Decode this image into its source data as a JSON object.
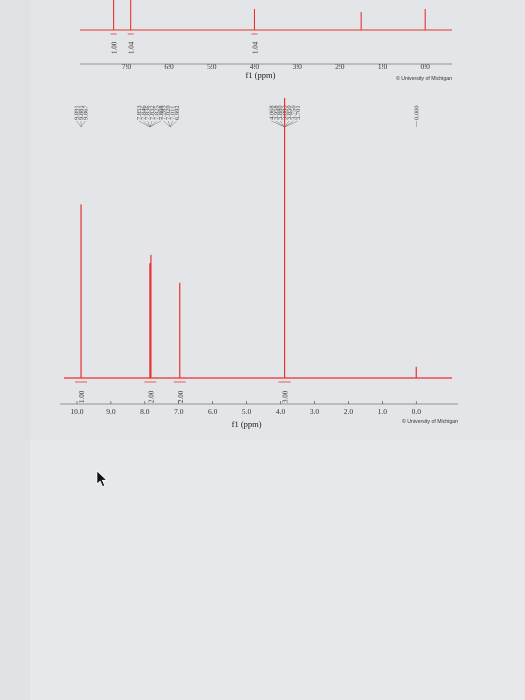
{
  "colors": {
    "spectrum": "#e8322d",
    "paper": "#e6e7e9",
    "text": "#333333"
  },
  "icons": {
    "cursor": "mouse-pointer-icon"
  },
  "chart_data": [
    {
      "type": "line",
      "panel": "top-partial",
      "xlabel": "f1 (ppm)",
      "credit": "© University of Michigan",
      "xlim": [
        7.9,
        -0.3
      ],
      "x_ticks": [
        "7.0",
        "6.0",
        "5.0",
        "4.0",
        "3.0",
        "2.0",
        "1.0",
        "0.0"
      ],
      "peaks": [
        {
          "x": 7.3,
          "height": 0.5
        },
        {
          "x": 6.9,
          "height": 0.5
        },
        {
          "x": 4.0,
          "height": 0.35
        },
        {
          "x": 1.5,
          "height": 0.3
        },
        {
          "x": 0.0,
          "height": 0.35
        }
      ],
      "integrals": [
        {
          "x": 7.3,
          "label": "1.00"
        },
        {
          "x": 6.9,
          "label": "1.04"
        },
        {
          "x": 4.0,
          "label": "1.04"
        }
      ]
    },
    {
      "type": "line",
      "panel": "main",
      "xlabel": "f1 (ppm)",
      "credit": "© University of Michigan",
      "xlim": [
        10.5,
        -0.7
      ],
      "x_ticks": [
        "10.0",
        "9.0",
        "8.0",
        "7.0",
        "6.0",
        "5.0",
        "4.0",
        "3.0",
        "2.0",
        "1.0",
        "0.0"
      ],
      "peak_groups": [
        {
          "x": 9.88,
          "shifts": [
            "9.891",
            "9.881",
            "9.867"
          ]
        },
        {
          "x": 7.85,
          "shifts": [
            "7.853",
            "7.846",
            "7.836",
            "7.832",
            "7.825",
            "7.808"
          ]
        },
        {
          "x": 7.25,
          "shifts": [
            "7.283",
            "7.020",
            "7.011",
            "6.992"
          ]
        },
        {
          "x": 3.88,
          "shifts": [
            "4.068",
            "3.958",
            "3.880",
            "3.883",
            "3.850",
            "3.750",
            "3.701"
          ]
        },
        {
          "x": 0.0,
          "shifts": [
            "0.000"
          ]
        }
      ],
      "peaks": [
        {
          "x": 9.88,
          "height": 0.62
        },
        {
          "x": 7.85,
          "height": 0.41
        },
        {
          "x": 7.82,
          "height": 0.44
        },
        {
          "x": 6.97,
          "height": 0.34
        },
        {
          "x": 3.88,
          "height": 1.0
        },
        {
          "x": 0.0,
          "height": 0.04
        }
      ],
      "integrals": [
        {
          "x": 9.88,
          "label": "1.00"
        },
        {
          "x": 7.84,
          "label": "2.00"
        },
        {
          "x": 6.97,
          "label": "2.00"
        },
        {
          "x": 3.88,
          "label": "3.00"
        }
      ]
    }
  ]
}
